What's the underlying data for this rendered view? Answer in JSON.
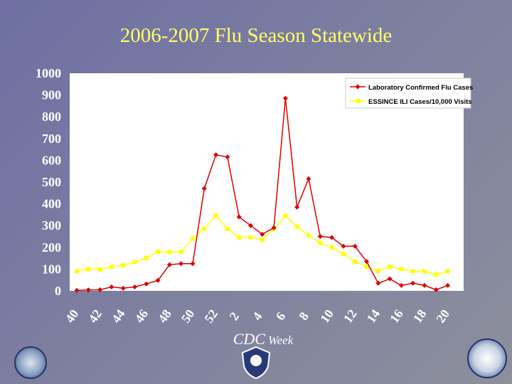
{
  "chart_data": {
    "type": "line",
    "title": "2006-2007 Flu Season Statewide",
    "xlabel_main": "CDC",
    "xlabel_sub": "Week",
    "ylabel": "",
    "ylim": [
      0,
      1000
    ],
    "yticks": [
      0,
      100,
      200,
      300,
      400,
      500,
      600,
      700,
      800,
      900,
      1000
    ],
    "x": [
      40,
      41,
      42,
      43,
      44,
      45,
      46,
      47,
      48,
      49,
      50,
      51,
      52,
      1,
      2,
      3,
      4,
      5,
      6,
      7,
      8,
      9,
      10,
      11,
      12,
      13,
      14,
      15,
      16,
      17,
      18,
      19,
      20
    ],
    "xtick_labels": [
      "40",
      "42",
      "44",
      "46",
      "48",
      "50",
      "52",
      "2",
      "4",
      "6",
      "8",
      "10",
      "12",
      "14",
      "16",
      "18",
      "20"
    ],
    "grid": false,
    "legend_position": "top-right",
    "series": [
      {
        "name": "Laboratory Confirmed Flu Cases",
        "color": "#dd0000",
        "marker": "diamond",
        "values": [
          2,
          4,
          5,
          18,
          12,
          18,
          32,
          48,
          120,
          125,
          125,
          470,
          625,
          615,
          340,
          300,
          260,
          290,
          885,
          385,
          515,
          250,
          245,
          205,
          205,
          135,
          35,
          55,
          25,
          35,
          25,
          5,
          25
        ]
      },
      {
        "name": "ESSINCE ILI Cases/10,000 Visits",
        "color": "#ffff00",
        "marker": "square",
        "values": [
          90,
          100,
          98,
          110,
          118,
          132,
          150,
          180,
          178,
          178,
          240,
          285,
          345,
          285,
          245,
          245,
          235,
          285,
          345,
          295,
          255,
          220,
          200,
          170,
          135,
          110,
          92,
          110,
          100,
          90,
          90,
          75,
          90
        ]
      }
    ]
  }
}
